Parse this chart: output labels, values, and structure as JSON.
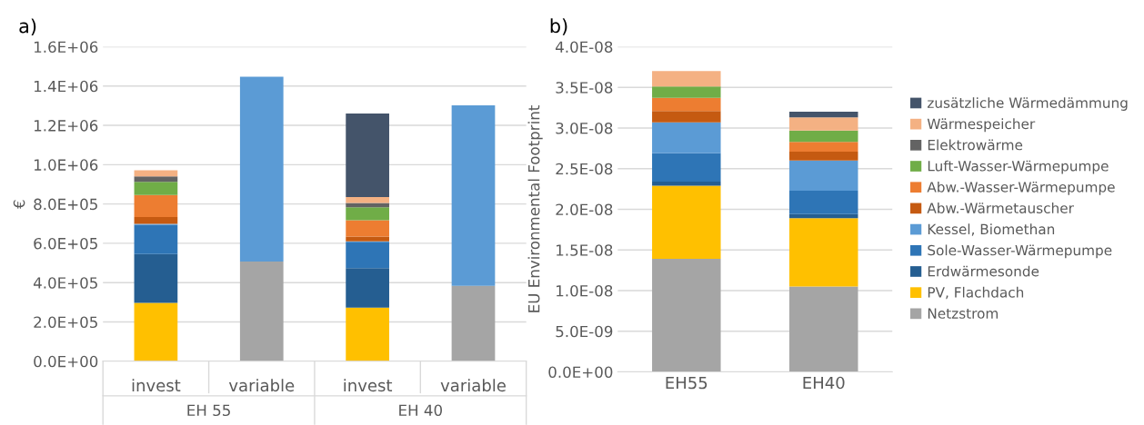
{
  "chart_data": [
    {
      "type": "bar",
      "title": "a)",
      "ylabel": "€",
      "stacked": true,
      "grid": "y",
      "legend": false,
      "categories": [
        "invest",
        "variable",
        "invest",
        "variable"
      ],
      "annotations": [
        "EH 55",
        "EH 40"
      ],
      "ylim": [
        0,
        1600000
      ],
      "yticks": [
        {
          "value": 0,
          "label": "0.0E+00"
        },
        {
          "value": 200000,
          "label": "2.0E+05"
        },
        {
          "value": 400000,
          "label": "4.0E+05"
        },
        {
          "value": 600000,
          "label": "6.0E+05"
        },
        {
          "value": 800000,
          "label": "8.0E+05"
        },
        {
          "value": 1000000,
          "label": "1.0E+06"
        },
        {
          "value": 1200000,
          "label": "1.2E+06"
        },
        {
          "value": 1400000,
          "label": "1.4E+06"
        },
        {
          "value": 1600000,
          "label": "1.6E+06"
        }
      ],
      "series": [
        {
          "color": "#a5a5a5",
          "values": [
            null,
            507000,
            null,
            384000
          ]
        },
        {
          "color": "#ffc000",
          "values": [
            297000,
            null,
            273000,
            null
          ]
        },
        {
          "color": "#255e91",
          "values": [
            248000,
            null,
            201000,
            null
          ]
        },
        {
          "color": "#2e75b6",
          "values": [
            148000,
            null,
            130000,
            null
          ]
        },
        {
          "color": "#5b9bd5",
          "values": [
            6000,
            941000,
            6000,
            918000
          ]
        },
        {
          "color": "#c55a11",
          "values": [
            35000,
            null,
            24000,
            null
          ]
        },
        {
          "color": "#ed7d31",
          "values": [
            112000,
            null,
            84000,
            null
          ]
        },
        {
          "color": "#70ad47",
          "values": [
            67000,
            null,
            65000,
            null
          ]
        },
        {
          "color": "#636363",
          "values": [
            27000,
            null,
            22000,
            null
          ]
        },
        {
          "color": "#f4b183",
          "values": [
            32000,
            null,
            30000,
            null
          ]
        },
        {
          "color": "#44546a",
          "values": [
            null,
            null,
            425000,
            null
          ]
        }
      ]
    },
    {
      "type": "bar",
      "title": "b)",
      "ylabel": "EU Environmental Footprint",
      "stacked": true,
      "grid": "y",
      "legend": "right",
      "categories": [
        "EH55",
        "EH40"
      ],
      "ylim": [
        0,
        4e-08
      ],
      "yticks": [
        {
          "value": 0,
          "label": "0.0E+00"
        },
        {
          "value": 5e-09,
          "label": "5.0E-09"
        },
        {
          "value": 1e-08,
          "label": "1.0E-08"
        },
        {
          "value": 1.5e-08,
          "label": "1.5E-08"
        },
        {
          "value": 2e-08,
          "label": "2.0E-08"
        },
        {
          "value": 2.5e-08,
          "label": "2.5E-08"
        },
        {
          "value": 3e-08,
          "label": "3.0E-08"
        },
        {
          "value": 3.5e-08,
          "label": "3.5E-08"
        },
        {
          "value": 4e-08,
          "label": "4.0E-08"
        }
      ],
      "series": [
        {
          "name": "Netzstrom",
          "color": "#a5a5a5",
          "values": [
            1.39e-08,
            1.05e-08
          ]
        },
        {
          "name": "PV, Flachdach",
          "color": "#ffc000",
          "values": [
            9e-09,
            8.4e-09
          ]
        },
        {
          "name": "Erdwärmesonde",
          "color": "#255e91",
          "values": [
            5e-10,
            5e-10
          ]
        },
        {
          "name": "Sole-Wasser-Wärmepumpe",
          "color": "#2e75b6",
          "values": [
            3.5e-09,
            2.9e-09
          ]
        },
        {
          "name": "Kessel, Biomethan",
          "color": "#5b9bd5",
          "values": [
            3.8e-09,
            3.7e-09
          ]
        },
        {
          "name": "Abw.-Wärmetauscher",
          "color": "#c55a11",
          "values": [
            1.4e-09,
            1.1e-09
          ]
        },
        {
          "name": "Abw.-Wasser-Wärmepumpe",
          "color": "#ed7d31",
          "values": [
            1.6e-09,
            1.2e-09
          ]
        },
        {
          "name": "Luft-Wasser-Wärmepumpe",
          "color": "#70ad47",
          "values": [
            1.4e-09,
            1.4e-09
          ]
        },
        {
          "name": "Elektrowärme",
          "color": "#636363",
          "values": [
            null,
            null
          ]
        },
        {
          "name": "Wärmespeicher",
          "color": "#f4b183",
          "values": [
            1.9e-09,
            1.6e-09
          ]
        },
        {
          "name": "zusätzliche Wärmedämmung",
          "color": "#44546a",
          "values": [
            null,
            7e-10
          ]
        }
      ]
    }
  ]
}
